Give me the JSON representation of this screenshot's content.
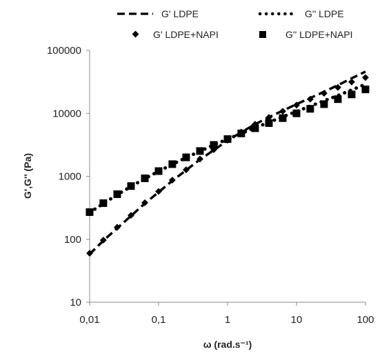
{
  "chart_data": {
    "type": "scatter",
    "xscale": "log",
    "yscale": "log",
    "xlabel": "ω (rad.s⁻¹)",
    "ylabel": "G',G'' (Pa)",
    "xlim": [
      0.01,
      100
    ],
    "ylim": [
      10,
      100000
    ],
    "grid": false,
    "legend_position": "top",
    "x_ticks": [
      "0,01",
      "0,1",
      "1",
      "10",
      "100"
    ],
    "y_ticks": [
      "10",
      "100",
      "1000",
      "10000",
      "100000"
    ],
    "series": [
      {
        "name": "G' LDPE",
        "style": "dash-line",
        "color": "#000000",
        "x": [
          0.01,
          0.0158,
          0.0251,
          0.0398,
          0.0631,
          0.1,
          0.158,
          0.251,
          0.398,
          0.631,
          1,
          1.58,
          2.51,
          3.98,
          6.31,
          10,
          15.8,
          25.1,
          39.8,
          63.1,
          100
        ],
        "y": [
          58,
          95,
          150,
          235,
          370,
          560,
          850,
          1250,
          1850,
          2600,
          3700,
          5000,
          6700,
          8700,
          11000,
          14000,
          17500,
          22000,
          28000,
          36000,
          46000
        ]
      },
      {
        "name": "G'' LDPE",
        "style": "dot-line",
        "color": "#000000",
        "x": [
          0.01,
          0.0158,
          0.0251,
          0.0398,
          0.0631,
          0.1,
          0.158,
          0.251,
          0.398,
          0.631,
          1,
          1.58,
          2.51,
          3.98,
          6.31,
          10,
          15.8,
          25.1,
          39.8,
          63.1,
          100
        ],
        "y": [
          265,
          370,
          510,
          690,
          920,
          1200,
          1550,
          1980,
          2500,
          3150,
          3900,
          4800,
          5900,
          7200,
          8800,
          10700,
          13000,
          15800,
          19200,
          23500,
          29000
        ]
      },
      {
        "name": "G' LDPE+NAPI",
        "style": "diamond",
        "color": "#000000",
        "x": [
          0.01,
          0.0158,
          0.0251,
          0.0398,
          0.0631,
          0.1,
          0.158,
          0.251,
          0.398,
          0.631,
          1,
          1.58,
          2.51,
          3.98,
          6.31,
          10,
          15.8,
          25.1,
          39.8,
          63.1,
          100
        ],
        "y": [
          60,
          97,
          155,
          240,
          380,
          575,
          870,
          1270,
          1880,
          2650,
          3750,
          5050,
          6700,
          8600,
          10800,
          13500,
          16800,
          20800,
          25800,
          31500,
          37000
        ]
      },
      {
        "name": "G'' LDPE+NAPI",
        "style": "square",
        "color": "#000000",
        "x": [
          0.01,
          0.0158,
          0.0251,
          0.0398,
          0.0631,
          0.1,
          0.158,
          0.251,
          0.398,
          0.631,
          1,
          1.58,
          2.51,
          3.98,
          6.31,
          10,
          15.8,
          25.1,
          39.8,
          63.1,
          100
        ],
        "y": [
          270,
          375,
          520,
          700,
          930,
          1210,
          1560,
          2000,
          2520,
          3150,
          3900,
          4800,
          5800,
          7000,
          8400,
          10000,
          11800,
          14000,
          16800,
          20000,
          24000
        ]
      }
    ]
  }
}
